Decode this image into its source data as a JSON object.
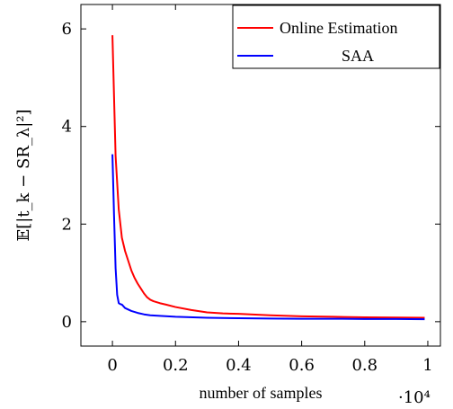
{
  "chart_data": {
    "type": "line",
    "title": "",
    "xlabel": "number of samples",
    "ylabel": "𝔼[|t_k − SR_λ|²]",
    "x_scale_note": "·10⁴",
    "xlim": [
      -0.1,
      1.04
    ],
    "ylim": [
      -0.5,
      6.5
    ],
    "x_ticks": [
      0,
      0.2,
      0.4,
      0.6,
      0.8,
      1
    ],
    "x_tick_labels": [
      "0",
      "0.2",
      "0.4",
      "0.6",
      "0.8",
      "1"
    ],
    "y_ticks": [
      0,
      2,
      4,
      6
    ],
    "y_tick_labels": [
      "0",
      "2",
      "4",
      "6"
    ],
    "legend_position": "top-right",
    "series": [
      {
        "name": "Online Estimation",
        "color": "#ff0000",
        "x": [
          0.0,
          0.01,
          0.02,
          0.03,
          0.04,
          0.05,
          0.06,
          0.07,
          0.08,
          0.09,
          0.1,
          0.11,
          0.12,
          0.13,
          0.15,
          0.17,
          0.2,
          0.25,
          0.3,
          0.35,
          0.4,
          0.5,
          0.6,
          0.7,
          0.8,
          0.9,
          0.99
        ],
        "y": [
          5.87,
          3.4,
          2.3,
          1.72,
          1.45,
          1.25,
          1.05,
          0.9,
          0.78,
          0.68,
          0.58,
          0.5,
          0.45,
          0.42,
          0.38,
          0.35,
          0.3,
          0.24,
          0.19,
          0.17,
          0.16,
          0.13,
          0.11,
          0.1,
          0.09,
          0.085,
          0.08
        ]
      },
      {
        "name": "SAA",
        "color": "#0000ff",
        "x": [
          0.0,
          0.005,
          0.01,
          0.015,
          0.02,
          0.025,
          0.03,
          0.04,
          0.05,
          0.06,
          0.08,
          0.1,
          0.12,
          0.15,
          0.2,
          0.3,
          0.4,
          0.5,
          0.6,
          0.7,
          0.8,
          0.9,
          0.99
        ],
        "y": [
          3.43,
          2.2,
          1.1,
          0.55,
          0.38,
          0.36,
          0.35,
          0.28,
          0.25,
          0.22,
          0.18,
          0.15,
          0.13,
          0.12,
          0.1,
          0.08,
          0.07,
          0.065,
          0.06,
          0.06,
          0.055,
          0.055,
          0.05
        ]
      }
    ]
  }
}
